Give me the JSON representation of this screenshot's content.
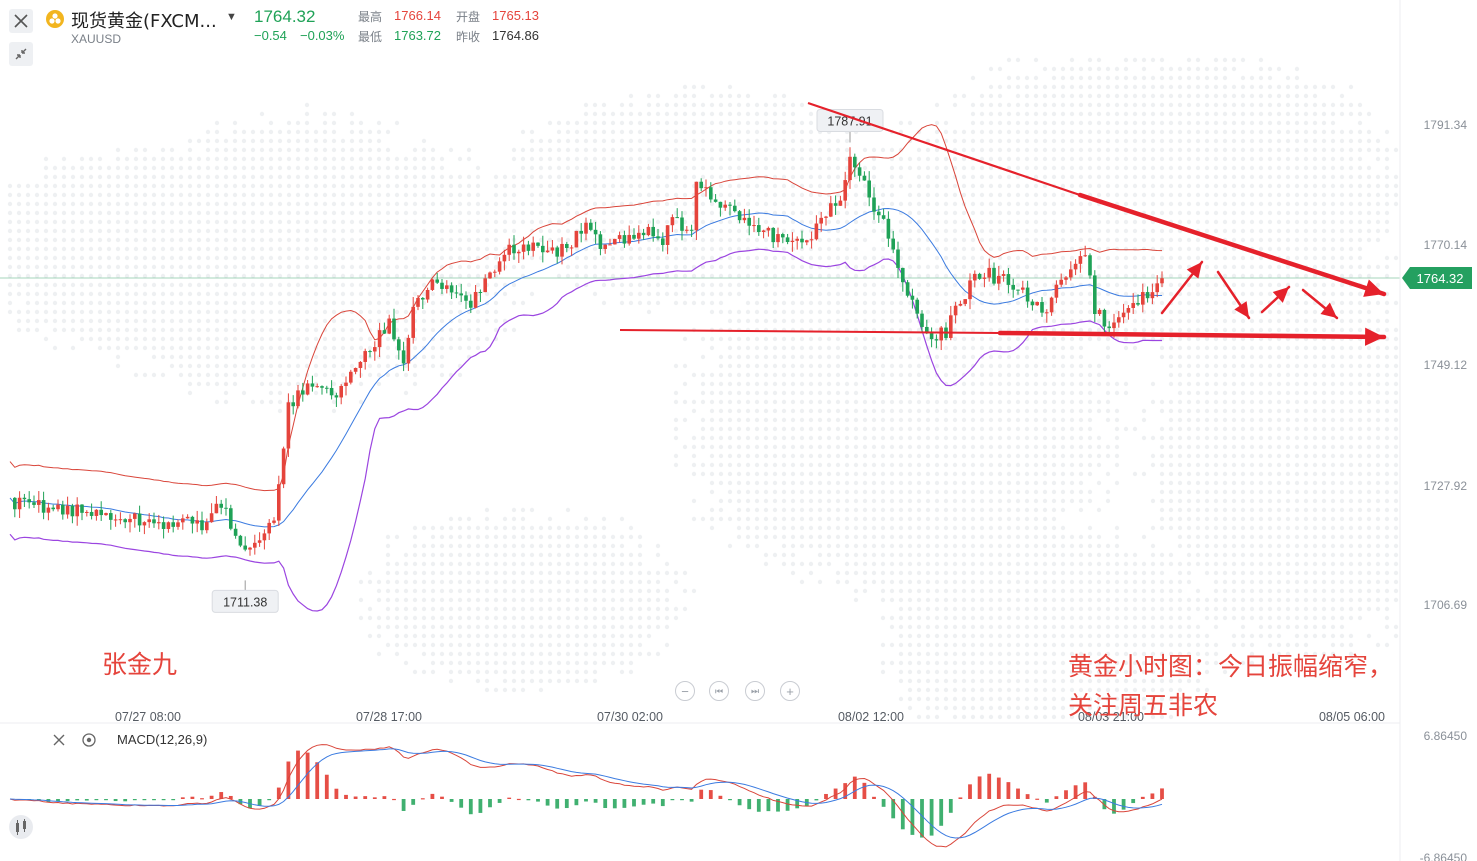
{
  "header": {
    "symbol_name": "现货黄金(FXCM...",
    "symbol_code": "XAUUSD",
    "last_price": "1764.32",
    "change": "−0.54",
    "change_pct": "−0.03%",
    "high_label": "最高",
    "high_value": "1766.14",
    "open_label": "开盘",
    "open_value": "1765.13",
    "low_label": "最低",
    "low_value": "1763.72",
    "prevclose_label": "昨收",
    "prevclose_value": "1764.86"
  },
  "indicator": {
    "macd_label": "MACD(12,26,9)"
  },
  "annotations": {
    "author": "张金九",
    "comment_line1": "黄金小时图：今日振幅缩窄，",
    "comment_line2": "关注周五非农"
  },
  "colors": {
    "up": "#e5443c",
    "down": "#1fa257",
    "ma": "#3b7be0",
    "lower_band": "#9b45e0",
    "upper_band": "#d9453a",
    "trendline": "#e5212b"
  },
  "chart_data": {
    "type": "candlestick",
    "title": "现货黄金(FXCM...)",
    "y_axis": {
      "ticks": [
        "1791.34",
        "1770.14",
        "1749.12",
        "1727.92",
        "1706.69"
      ],
      "ylim": [
        1697.0,
        1800.0
      ],
      "current_price_tag": "1764.32"
    },
    "x_axis": {
      "ticks": [
        "07/27 08:00",
        "07/28 17:00",
        "07/30 02:00",
        "08/02 12:00",
        "08/03 21:00",
        "08/05 06:00"
      ]
    },
    "markers": [
      {
        "label": "1787.91",
        "type": "high"
      },
      {
        "label": "1711.38",
        "type": "low"
      }
    ],
    "candle_summary": {
      "count": 120,
      "low": 1711.38,
      "high": 1787.91,
      "last_close": 1764.32
    },
    "close_path_points": [
      [
        0,
        1725
      ],
      [
        30,
        1721
      ],
      [
        40,
        1721
      ],
      [
        44,
        1724
      ],
      [
        48,
        1718
      ],
      [
        52,
        1717
      ],
      [
        55,
        1722
      ],
      [
        58,
        1742
      ],
      [
        62,
        1745
      ],
      [
        68,
        1744
      ],
      [
        72,
        1748
      ],
      [
        76,
        1753
      ],
      [
        79,
        1757
      ],
      [
        82,
        1750
      ],
      [
        84,
        1760
      ],
      [
        88,
        1763
      ],
      [
        92,
        1762
      ],
      [
        96,
        1760
      ],
      [
        100,
        1765
      ],
      [
        104,
        1769
      ],
      [
        108,
        1770
      ],
      [
        112,
        1768
      ],
      [
        116,
        1770
      ],
      [
        120,
        1773
      ],
      [
        124,
        1770
      ],
      [
        128,
        1771
      ],
      [
        132,
        1773
      ],
      [
        136,
        1771
      ],
      [
        138,
        1776
      ],
      [
        140,
        1773
      ],
      [
        142,
        1772
      ],
      [
        143,
        1782
      ],
      [
        146,
        1778
      ],
      [
        150,
        1776
      ],
      [
        154,
        1774
      ],
      [
        158,
        1772
      ],
      [
        162,
        1770
      ],
      [
        166,
        1771
      ],
      [
        170,
        1776
      ],
      [
        173,
        1778
      ],
      [
        175,
        1786
      ],
      [
        177,
        1782
      ],
      [
        180,
        1777
      ],
      [
        183,
        1772
      ],
      [
        186,
        1764
      ],
      [
        189,
        1757
      ],
      [
        192,
        1754
      ],
      [
        195,
        1755
      ],
      [
        198,
        1760
      ],
      [
        201,
        1764
      ],
      [
        204,
        1765
      ],
      [
        207,
        1764
      ],
      [
        210,
        1763
      ],
      [
        213,
        1760
      ],
      [
        216,
        1758
      ],
      [
        219,
        1764
      ],
      [
        222,
        1767
      ],
      [
        224,
        1769
      ],
      [
        226,
        1759
      ],
      [
        229,
        1756
      ],
      [
        232,
        1758
      ],
      [
        235,
        1760
      ],
      [
        238,
        1763
      ],
      [
        240,
        1764.32
      ]
    ],
    "macd_summary": {
      "series": [
        "MACD",
        "Signal",
        "Histogram"
      ],
      "ylim": [
        -6.8645,
        6.8645
      ],
      "ticks": [
        "6.86450",
        "-6.86450"
      ]
    }
  }
}
